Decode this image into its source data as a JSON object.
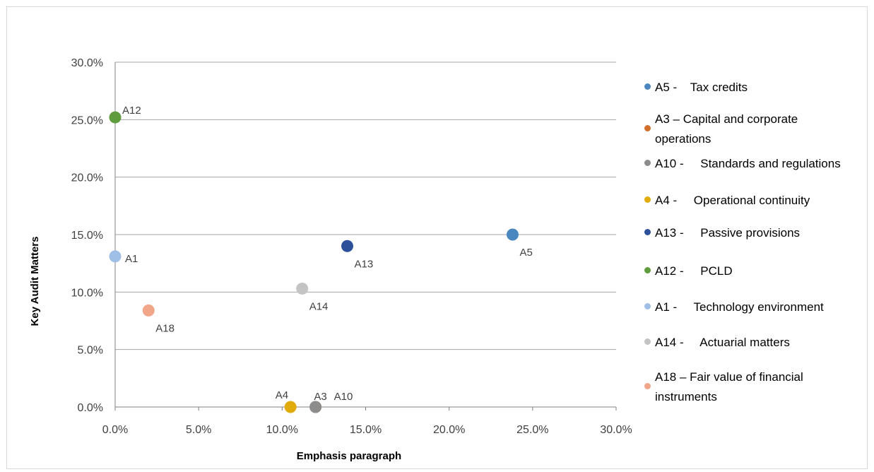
{
  "chart_data": {
    "type": "scatter",
    "title": "",
    "xlabel": "Emphasis paragraph",
    "ylabel": "Key Audit Matters",
    "xlim": [
      0,
      0.3
    ],
    "ylim": [
      0,
      0.3
    ],
    "x_ticks": [
      "0.0%",
      "5.0%",
      "10.0%",
      "15.0%",
      "20.0%",
      "25.0%",
      "30.0%"
    ],
    "y_ticks": [
      "0.0%",
      "5.0%",
      "10.0%",
      "15.0%",
      "20.0%",
      "25.0%",
      "30.0%"
    ],
    "grid": "horizontal",
    "legend_position": "right",
    "series": [
      {
        "name": "A5 -    Tax credits",
        "label": "A5",
        "x": 0.238,
        "y": 0.15,
        "color": "#4a86c0",
        "label_pos": "below-right"
      },
      {
        "name": "A3 – Capital and corporate\noperations",
        "label": "A3",
        "x": 0.12,
        "y": 0.0,
        "color": "#d36f2c",
        "label_pos": "above"
      },
      {
        "name": "A10 -     Standards and regulations",
        "label": "A10",
        "x": 0.12,
        "y": 0.0,
        "color": "#8c8c8c",
        "label_pos": "above-right"
      },
      {
        "name": "A4 -     Operational continuity",
        "label": "A4",
        "x": 0.105,
        "y": 0.0,
        "color": "#e1ab0b",
        "label_pos": "above-left"
      },
      {
        "name": "A13 -     Passive provisions",
        "label": "A13",
        "x": 0.139,
        "y": 0.14,
        "color": "#2c519a",
        "label_pos": "below-right"
      },
      {
        "name": "A12 -     PCLD",
        "label": "A12",
        "x": 0.0,
        "y": 0.252,
        "color": "#5e9c3d",
        "label_pos": "above-right"
      },
      {
        "name": "A1 -     Technology environment",
        "label": "A1",
        "x": 0.0,
        "y": 0.131,
        "color": "#9fbfe6",
        "label_pos": "right"
      },
      {
        "name": "A14 -     Actuarial matters",
        "label": "A14",
        "x": 0.112,
        "y": 0.103,
        "color": "#c4c4c4",
        "label_pos": "below-right"
      },
      {
        "name": "A18 – Fair value of financial\ninstruments",
        "label": "A18",
        "x": 0.02,
        "y": 0.084,
        "color": "#f2a689",
        "label_pos": "below-right"
      }
    ]
  }
}
